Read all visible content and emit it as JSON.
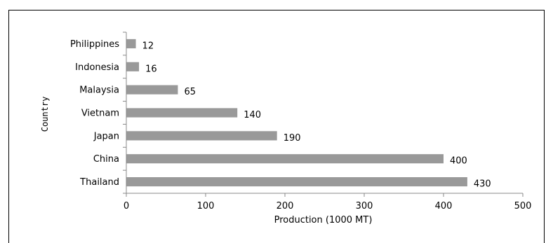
{
  "chart_data": {
    "type": "bar",
    "orientation": "horizontal",
    "title": "",
    "xlabel": "Production (1000 MT)",
    "ylabel": "Country",
    "xlim": [
      0,
      500
    ],
    "xticks": [
      0,
      100,
      200,
      300,
      400,
      500
    ],
    "categories": [
      "Philippines",
      "Indonesia",
      "Malaysia",
      "Vietnam",
      "Japan",
      "China",
      "Thailand"
    ],
    "values": [
      12,
      16,
      65,
      140,
      190,
      400,
      430
    ],
    "data_labels": [
      "12",
      "16",
      "65",
      "140",
      "190",
      "400",
      "430"
    ],
    "bar_color": "#999999",
    "grid": false,
    "legend": "none"
  }
}
